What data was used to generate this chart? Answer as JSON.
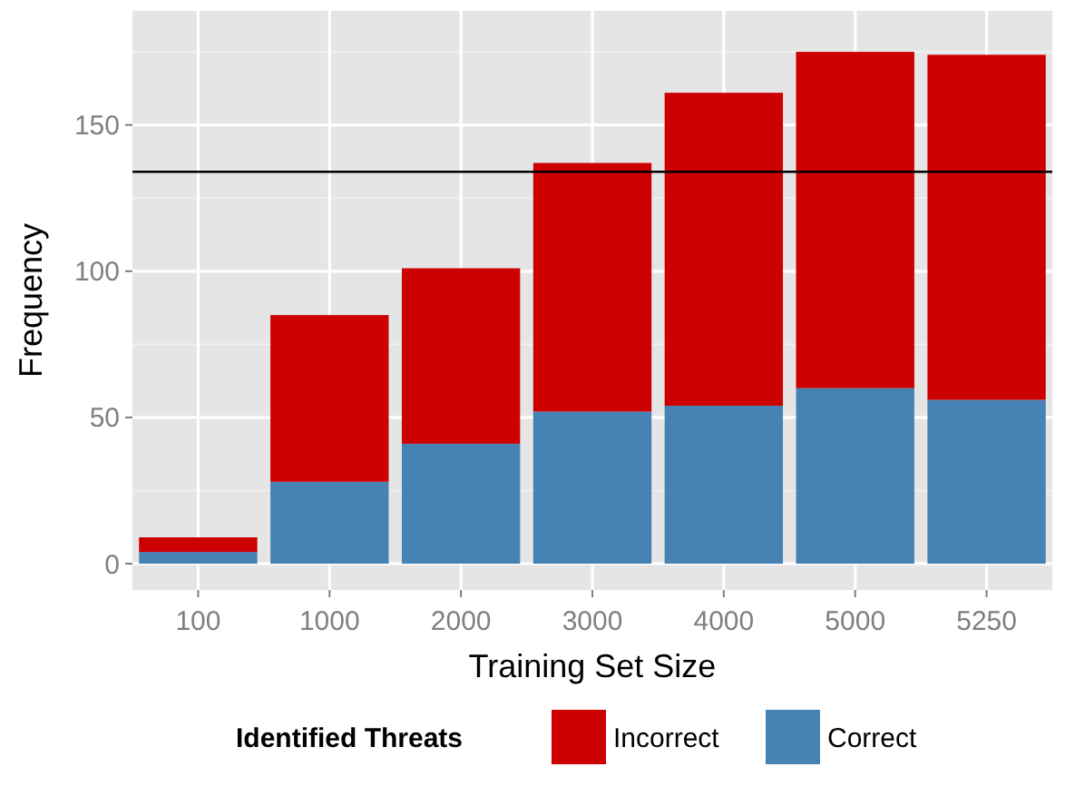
{
  "chart_data": {
    "type": "bar",
    "xlabel": "Training Set Size",
    "ylabel": "Frequency",
    "legend_title": "Identified Threats",
    "categories": [
      "100",
      "1000",
      "2000",
      "3000",
      "4000",
      "5000",
      "5250"
    ],
    "stacked": true,
    "series": [
      {
        "name": "Correct",
        "color": "#4682b4",
        "values": [
          4,
          28,
          41,
          52,
          54,
          60,
          56
        ]
      },
      {
        "name": "Incorrect",
        "color": "#cc0000",
        "values": [
          5,
          57,
          60,
          85,
          107,
          115,
          118
        ]
      }
    ],
    "ylim": [
      -9,
      189
    ],
    "yticks": [
      0,
      50,
      100,
      150
    ],
    "grid": true,
    "legend": "bottom",
    "ref_lines": [
      {
        "axis": "y",
        "value": 134,
        "color": "#000000"
      }
    ]
  }
}
